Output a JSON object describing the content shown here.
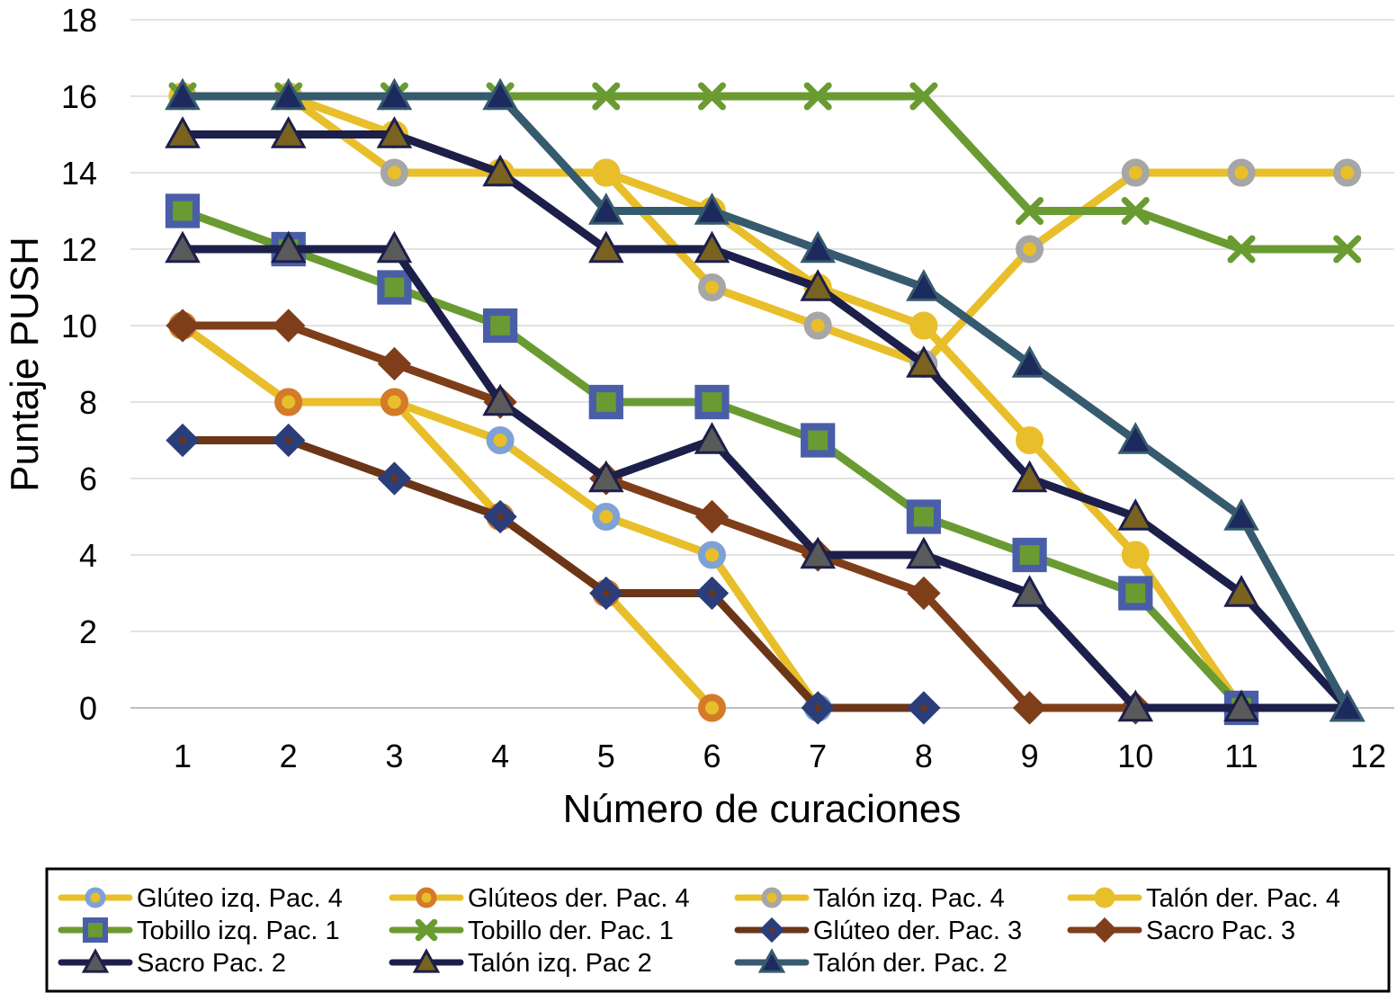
{
  "chart_data": {
    "type": "line",
    "xlabel": "Número de curaciones",
    "ylabel": "Puntaje PUSH",
    "x": [
      1,
      2,
      3,
      4,
      5,
      6,
      7,
      8,
      9,
      10,
      11,
      12
    ],
    "xticks": [
      "1",
      "2",
      "3",
      "4",
      "5",
      "6",
      "7",
      "8",
      "9",
      "10",
      "11",
      "12"
    ],
    "ylim": [
      0,
      18
    ],
    "yticks": [
      "0",
      "2",
      "4",
      "6",
      "8",
      "10",
      "12",
      "14",
      "16",
      "18"
    ],
    "grid": "horizontal",
    "legend": "bottom",
    "series": [
      {
        "name": "Glúteo izq. Pac. 4",
        "line_color": "#e8bf2a",
        "marker": "circle",
        "marker_color": "#7fa2d6",
        "values": [
          10,
          8,
          8,
          7,
          5,
          4,
          0,
          null,
          null,
          null,
          null,
          null
        ]
      },
      {
        "name": "Glúteos der. Pac. 4",
        "line_color": "#e8bf2a",
        "marker": "circle",
        "marker_color": "#d47a28",
        "values": [
          10,
          8,
          8,
          5,
          3,
          0,
          null,
          null,
          null,
          null,
          null,
          null
        ]
      },
      {
        "name": "Talón izq. Pac. 4",
        "line_color": "#e8bf2a",
        "marker": "circle",
        "marker_color": "#a6a6a6",
        "values": [
          16,
          16,
          14,
          14,
          14,
          11,
          10,
          9,
          12,
          14,
          14,
          14
        ]
      },
      {
        "name": "Talón der. Pac. 4",
        "line_color": "#e8bf2a",
        "marker": "circle",
        "marker_color": "#e8bf2a",
        "values": [
          16,
          16,
          15,
          14,
          14,
          13,
          11,
          10,
          7,
          4,
          0,
          null
        ]
      },
      {
        "name": "Tobillo izq. Pac. 1",
        "line_color": "#6a9b32",
        "marker": "square",
        "marker_color": "#4a5ea8",
        "values": [
          13,
          12,
          11,
          10,
          8,
          8,
          7,
          5,
          4,
          3,
          0,
          null
        ]
      },
      {
        "name": "Tobillo der. Pac. 1",
        "line_color": "#6a9b32",
        "marker": "x",
        "marker_color": "#6a9b32",
        "values": [
          16,
          16,
          16,
          16,
          16,
          16,
          16,
          16,
          13,
          13,
          12,
          12
        ]
      },
      {
        "name": "Glúteo der. Pac. 3",
        "line_color": "#6b3518",
        "marker": "diamond",
        "marker_color": "#2b3e7a",
        "values": [
          7,
          7,
          6,
          5,
          3,
          3,
          0,
          0,
          null,
          null,
          null,
          null
        ]
      },
      {
        "name": "Sacro Pac. 3",
        "line_color": "#7f3e1a",
        "marker": "diamond",
        "marker_color": "#7f3e1a",
        "values": [
          10,
          10,
          9,
          8,
          6,
          5,
          4,
          3,
          0,
          0,
          null,
          null
        ]
      },
      {
        "name": "Sacro Pac. 2",
        "line_color": "#1c1f4a",
        "marker": "triangle",
        "marker_color": "#5a5a5a",
        "values": [
          12,
          12,
          12,
          8,
          6,
          7,
          4,
          4,
          3,
          0,
          0,
          0
        ]
      },
      {
        "name": "Talón izq. Pac 2",
        "line_color": "#1c1f4a",
        "marker": "triangle",
        "marker_color": "#7a6220",
        "values": [
          15,
          15,
          15,
          14,
          12,
          12,
          11,
          9,
          6,
          5,
          3,
          0
        ]
      },
      {
        "name": "Talón der. Pac. 2",
        "line_color": "#365a6e",
        "marker": "triangle",
        "marker_color": "#1c2a5e",
        "values": [
          16,
          16,
          16,
          16,
          13,
          13,
          12,
          11,
          9,
          7,
          5,
          0
        ]
      }
    ]
  }
}
